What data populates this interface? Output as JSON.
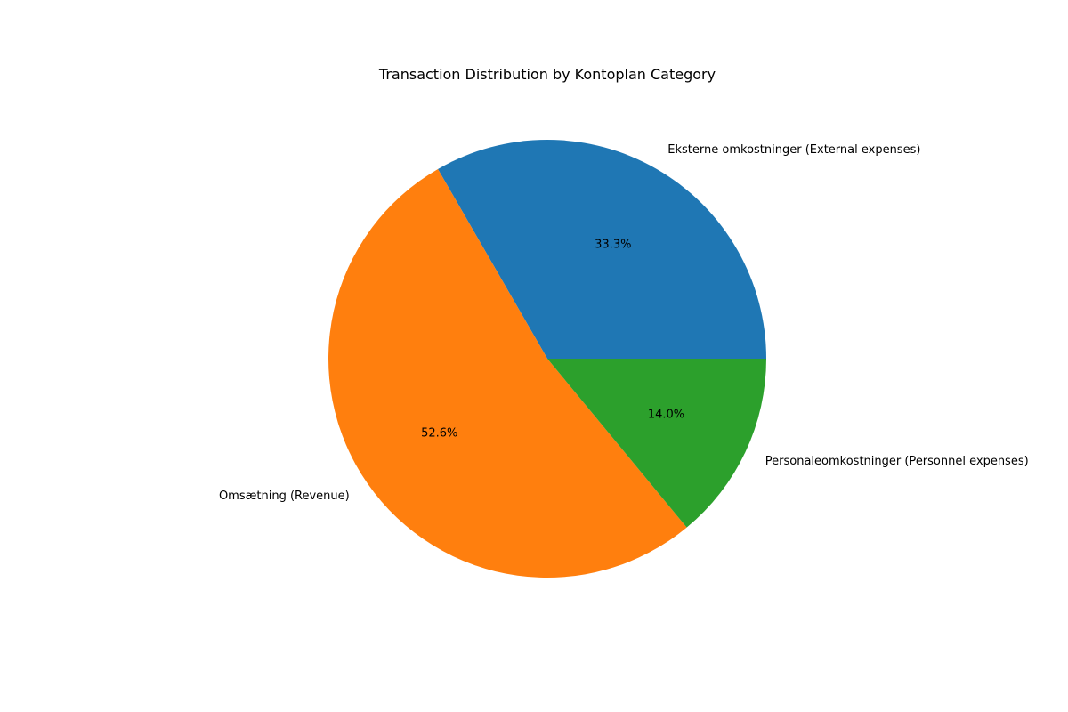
{
  "chart_data": {
    "type": "pie",
    "title": "Transaction Distribution by Kontoplan Category",
    "slices": [
      {
        "label": "Eksterne omkostninger (External expenses)",
        "value": 33.3,
        "pct_label": "33.3%",
        "color": "#1f77b4"
      },
      {
        "label": "Omsætning (Revenue)",
        "value": 52.6,
        "pct_label": "52.6%",
        "color": "#ff7f0e"
      },
      {
        "label": "Personaleomkostninger (Personnel expenses)",
        "value": 14.0,
        "pct_label": "14.0%",
        "color": "#2ca02c"
      }
    ],
    "start_angle_deg": 0,
    "direction": "counterclockwise",
    "legend": false
  }
}
